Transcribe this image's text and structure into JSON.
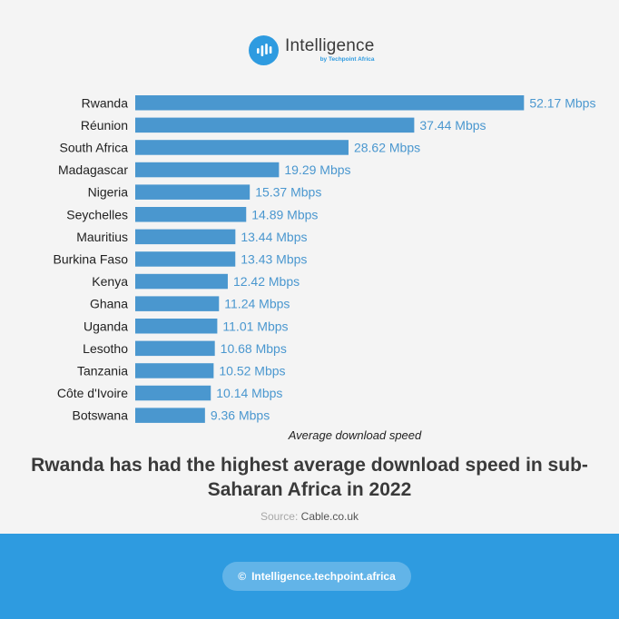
{
  "brand": {
    "name": "Intelligence",
    "sub": "by Techpoint Africa"
  },
  "chart_data": {
    "type": "bar",
    "orientation": "horizontal",
    "categories": [
      "Rwanda",
      "Réunion",
      "South Africa",
      "Madagascar",
      "Nigeria",
      "Seychelles",
      "Mauritius",
      "Burkina Faso",
      "Kenya",
      "Ghana",
      "Uganda",
      "Lesotho",
      "Tanzania",
      "Côte d'Ivoire",
      "Botswana"
    ],
    "values": [
      52.17,
      37.44,
      28.62,
      19.29,
      15.37,
      14.89,
      13.44,
      13.43,
      12.42,
      11.24,
      11.01,
      10.68,
      10.52,
      10.14,
      9.36
    ],
    "value_labels": [
      "52.17 Mbps",
      "37.44 Mbps",
      "28.62 Mbps",
      "19.29 Mbps",
      "15.37 Mbps",
      "14.89 Mbps",
      "13.44 Mbps",
      "13.43 Mbps",
      "12.42 Mbps",
      "11.24 Mbps",
      "11.01 Mbps",
      "10.68 Mbps",
      "10.52 Mbps",
      "10.14 Mbps",
      "9.36 Mbps"
    ],
    "unit": "Mbps",
    "xlabel": "Average download speed",
    "grid": false,
    "legend": "none",
    "bar_color": "#4a97cf",
    "label_color": "#4a97cf"
  },
  "headline": "Rwanda has had the highest average download speed in sub-Saharan Africa in 2022",
  "source": {
    "label": "Source:",
    "value": "Cable.co.uk"
  },
  "footer": {
    "icon": "©",
    "text": "Intelligence.techpoint.africa"
  },
  "colors": {
    "accent": "#2e9be0",
    "footer_bg": "#2e9be0",
    "bar": "#4a97cf"
  }
}
